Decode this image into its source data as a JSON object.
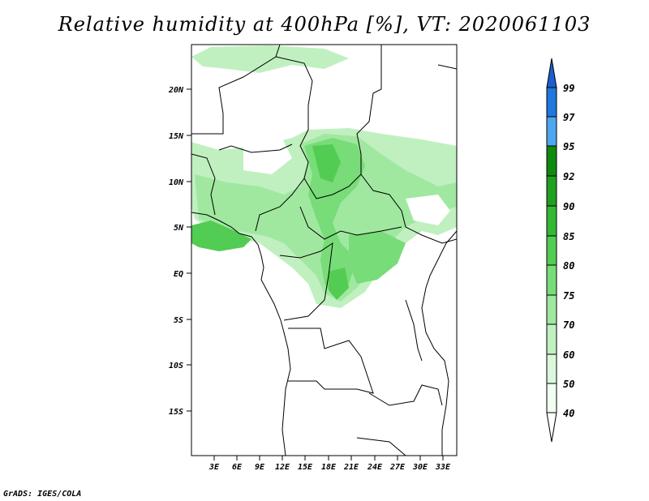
{
  "title": "Relative humidity at 400hPa [%], VT: 2020061103",
  "credit": "GrADS: IGES/COLA",
  "map": {
    "lat_labels": [
      "20N",
      "15N",
      "10N",
      "5N",
      "EQ",
      "5S",
      "10S",
      "15S"
    ],
    "lon_labels": [
      "3E",
      "6E",
      "9E",
      "12E",
      "15E",
      "18E",
      "21E",
      "24E",
      "27E",
      "30E",
      "33E"
    ]
  },
  "colorbar": {
    "labels": [
      "99",
      "97",
      "95",
      "92",
      "90",
      "85",
      "80",
      "75",
      "70",
      "60",
      "50",
      "40"
    ],
    "colors": [
      "#1c5fcf",
      "#1f78dc",
      "#4ea6ee",
      "#0e8a0e",
      "#20a020",
      "#34b834",
      "#52cc52",
      "#78dc78",
      "#a0e8a0",
      "#c0f0c0",
      "#dcf8dc",
      "#f0fff0"
    ]
  }
}
